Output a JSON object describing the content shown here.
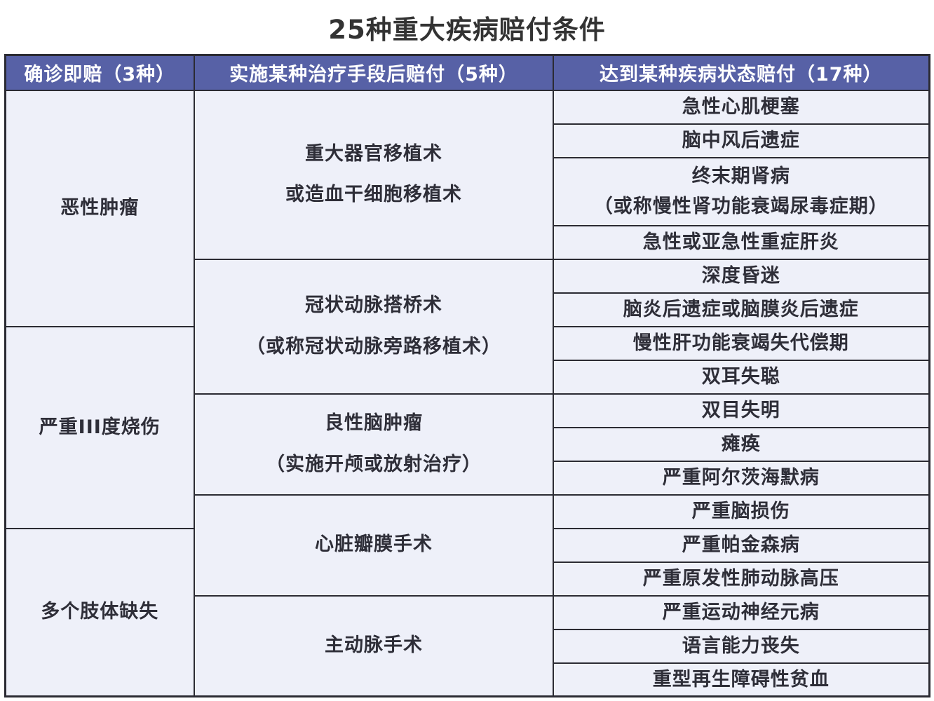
{
  "title": "25种重大疾病赔付条件",
  "table": {
    "headers": [
      "确诊即赔（3种）",
      "实施某种治疗手段后赔付（5种）",
      "达到某种疾病状态赔付（17种）"
    ],
    "diagnosis_categories": [
      "恶性肿瘤",
      "严重III度烧伤",
      "多个肢体缺失"
    ],
    "treatments": [
      "重大器官移植术\n或造血干细胞移植术",
      "冠状动脉搭桥术\n（或称冠状动脉旁路移植术）",
      "良性脑肿瘤\n（实施开颅或放射治疗）",
      "心脏瓣膜手术",
      "主动脉手术"
    ],
    "conditions": [
      "急性心肌梗塞",
      "脑中风后遗症",
      "终末期肾病\n（或称慢性肾功能衰竭尿毒症期）",
      "急性或亚急性重症肝炎",
      "深度昏迷",
      "脑炎后遗症或脑膜炎后遗症",
      "慢性肝功能衰竭失代偿期",
      "双耳失聪",
      "双目失明",
      "瘫痪",
      "严重阿尔茨海默病",
      "严重脑损伤",
      "严重帕金森病",
      "严重原发性肺动脉高压",
      "严重运动神经元病",
      "语言能力丧失",
      "重型再生障碍性贫血"
    ]
  },
  "colors": {
    "header_bg": "#5761a6",
    "header_text": "#ffffff",
    "cell_bg": "#eef0f9",
    "border": "#2b2b33",
    "title_text": "#333333",
    "body_text": "#2e2e38",
    "page_bg": "#ffffff"
  }
}
